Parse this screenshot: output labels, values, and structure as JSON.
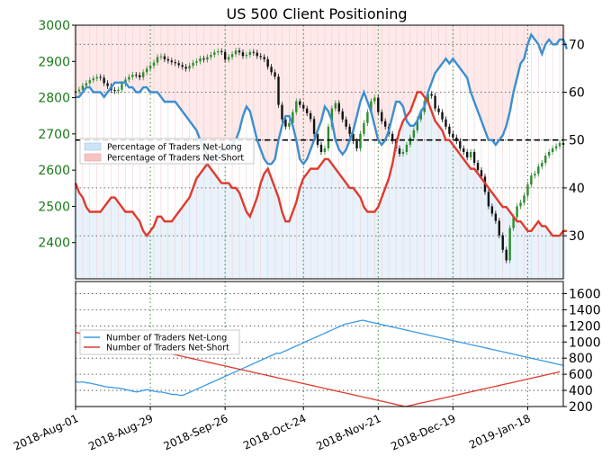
{
  "chart_data": [
    {
      "type": "candlestick+line",
      "title": "US 500 Client Positioning",
      "x_tick_labels": [
        "2018-Aug-01",
        "2018-Aug-29",
        "2018-Sep-26",
        "2018-Oct-24",
        "2018-Nov-21",
        "2018-Dec-19",
        "2019-Jan-18"
      ],
      "left_axis": {
        "ticks": [
          "2400",
          "2500",
          "2600",
          "2700",
          "2800",
          "2900",
          "3000"
        ],
        "range": [
          2300,
          3000
        ],
        "color": "#1a7a1a"
      },
      "right_axis": {
        "ticks": [
          "30",
          "40",
          "50",
          "60",
          "70"
        ],
        "range": [
          21,
          74
        ]
      },
      "reference_line": 50,
      "legend": [
        {
          "label": "Percentage of Traders Net-Long",
          "color": "#cde4f7"
        },
        {
          "label": "Percentage of Traders Net-Short",
          "color": "#f7c4c4"
        }
      ],
      "net_long_color": "#3a8fd0",
      "net_short_color": "#e03a2e",
      "price_close": [
        2818,
        2822,
        2833,
        2840,
        2848,
        2853,
        2857,
        2855,
        2840,
        2832,
        2821,
        2818,
        2822,
        2838,
        2850,
        2857,
        2863,
        2862,
        2856,
        2870,
        2880,
        2888,
        2897,
        2912,
        2914,
        2906,
        2902,
        2898,
        2895,
        2890,
        2885,
        2880,
        2888,
        2896,
        2900,
        2908,
        2905,
        2912,
        2918,
        2925,
        2928,
        2926,
        2905,
        2912,
        2920,
        2930,
        2925,
        2915,
        2918,
        2926,
        2924,
        2915,
        2912,
        2906,
        2885,
        2870,
        2858,
        2780,
        2740,
        2720,
        2730,
        2760,
        2790,
        2780,
        2770,
        2757,
        2741,
        2700,
        2670,
        2650,
        2660,
        2720,
        2770,
        2785,
        2762,
        2740,
        2720,
        2700,
        2680,
        2660,
        2700,
        2730,
        2760,
        2790,
        2800,
        2760,
        2735,
        2720,
        2700,
        2680,
        2660,
        2645,
        2650,
        2670,
        2690,
        2710,
        2740,
        2760,
        2790,
        2810,
        2805,
        2770,
        2760,
        2740,
        2720,
        2700,
        2690,
        2680,
        2660,
        2650,
        2635,
        2650,
        2620,
        2600,
        2582,
        2540,
        2500,
        2480,
        2460,
        2420,
        2380,
        2351,
        2440,
        2470,
        2500,
        2510,
        2530,
        2560,
        2585,
        2590,
        2610,
        2620,
        2640,
        2650,
        2660,
        2666,
        2675,
        2670
      ],
      "pct_long": [
        59,
        59,
        60,
        61,
        61,
        60,
        60,
        60,
        59,
        60,
        61,
        62,
        62,
        62,
        62,
        61,
        61,
        60,
        60,
        61,
        61,
        60,
        60,
        60,
        59,
        58,
        58,
        58,
        58,
        57,
        56,
        55,
        54,
        53,
        52,
        50,
        48,
        47,
        46,
        46,
        47,
        48,
        48,
        49,
        49,
        50,
        52,
        55,
        57,
        56,
        53,
        50,
        48,
        46,
        45,
        45,
        46,
        50,
        53,
        55,
        55,
        53,
        50,
        46,
        45,
        46,
        48,
        50,
        52,
        54,
        57,
        56,
        54,
        50,
        48,
        47,
        48,
        50,
        52,
        55,
        58,
        60,
        58,
        56,
        53,
        50,
        49,
        50,
        52,
        55,
        58,
        58,
        57,
        54,
        53,
        53,
        54,
        56,
        57,
        60,
        62,
        64,
        65,
        66,
        67,
        66,
        67,
        66,
        65,
        64,
        63,
        60,
        58,
        56,
        54,
        52,
        50,
        50,
        49,
        50,
        51,
        53,
        56,
        60,
        63,
        66,
        67,
        70,
        72,
        71,
        70,
        68,
        70,
        71,
        70,
        70,
        71,
        71,
        69
      ],
      "pct_short": [
        41,
        39,
        38,
        36,
        35,
        35,
        35,
        35,
        36,
        37,
        38,
        38,
        37,
        36,
        35,
        35,
        35,
        34,
        33,
        31,
        30,
        31,
        32,
        34,
        34,
        33,
        33,
        33,
        34,
        35,
        36,
        37,
        38,
        40,
        42,
        43,
        44,
        45,
        44,
        43,
        42,
        41,
        41,
        41,
        40,
        40,
        39,
        37,
        35,
        34,
        36,
        38,
        41,
        43,
        44,
        42,
        40,
        38,
        35,
        33,
        33,
        35,
        37,
        40,
        42,
        43,
        44,
        44,
        44,
        45,
        46,
        46,
        45,
        44,
        43,
        42,
        41,
        40,
        40,
        39,
        38,
        36,
        35,
        35,
        35,
        36,
        38,
        40,
        42,
        45,
        49,
        52,
        54,
        55,
        56,
        58,
        60,
        60,
        59,
        58,
        56,
        54,
        53,
        52,
        50,
        50,
        49,
        48,
        47,
        46,
        45,
        44,
        44,
        43,
        42,
        41,
        40,
        39,
        38,
        37,
        36,
        36,
        35,
        34,
        33,
        33,
        32,
        31,
        31,
        32,
        33,
        32,
        32,
        31,
        30,
        30,
        30,
        31,
        31
      ]
    },
    {
      "type": "line",
      "y_axis": {
        "ticks": [
          "200",
          "400",
          "600",
          "800",
          "1000",
          "1200",
          "1400",
          "1600"
        ],
        "range": [
          200,
          1750
        ]
      },
      "legend": [
        {
          "label": "Number of Traders Net-Long",
          "color": "#3a9ae6"
        },
        {
          "label": "Number of Traders Net-Short",
          "color": "#e03a2e"
        }
      ],
      "net_long": [
        510,
        500,
        505,
        495,
        490,
        480,
        470,
        460,
        450,
        440,
        440,
        430,
        430,
        420,
        410,
        400,
        390,
        380,
        390,
        400,
        410,
        400,
        390,
        380,
        380,
        370,
        360,
        350,
        350,
        340,
        340,
        360,
        380,
        400,
        420,
        440,
        460,
        480,
        500,
        520,
        540,
        560,
        580,
        600,
        620,
        640,
        660,
        680,
        700,
        720,
        740,
        760,
        780,
        800,
        820,
        840,
        860,
        860,
        880,
        900,
        920,
        940,
        960,
        980,
        1000,
        1020,
        1040,
        1060,
        1080,
        1100,
        1120,
        1140,
        1160,
        1180,
        1200,
        1220,
        1230,
        1240,
        1250,
        1260,
        1270,
        1260,
        1250,
        1240,
        1230,
        1220,
        1210,
        1200,
        1190,
        1180,
        1170,
        1160,
        1150,
        1140,
        1130,
        1120,
        1110,
        1100,
        1090,
        1080,
        1070,
        1060,
        1050,
        1040,
        1030,
        1020,
        1010,
        1000,
        990,
        980,
        970,
        960,
        950,
        940,
        930,
        920,
        910,
        900,
        890,
        880,
        870,
        860,
        850,
        840,
        830,
        820,
        810,
        800,
        790,
        780,
        770,
        760,
        750,
        740,
        730,
        720,
        710
      ],
      "net_short": [
        1120,
        1110,
        1100,
        1090,
        1080,
        1070,
        1060,
        1050,
        1040,
        1030,
        1020,
        1010,
        1000,
        990,
        980,
        970,
        960,
        950,
        940,
        930,
        920,
        910,
        900,
        890,
        880,
        870,
        860,
        850,
        840,
        830,
        820,
        810,
        800,
        790,
        780,
        770,
        760,
        750,
        740,
        730,
        720,
        710,
        700,
        690,
        680,
        670,
        660,
        650,
        640,
        630,
        620,
        610,
        600,
        590,
        580,
        570,
        560,
        550,
        540,
        530,
        520,
        510,
        500,
        490,
        480,
        470,
        460,
        450,
        440,
        430,
        420,
        410,
        400,
        390,
        380,
        370,
        360,
        350,
        340,
        330,
        320,
        310,
        300,
        290,
        280,
        270,
        260,
        250,
        240,
        230,
        220,
        210,
        200,
        210,
        220,
        230,
        240,
        250,
        260,
        270,
        280,
        290,
        300,
        310,
        320,
        330,
        340,
        350,
        360,
        370,
        380,
        390,
        400,
        410,
        420,
        430,
        440,
        450,
        460,
        470,
        480,
        490,
        500,
        510,
        520,
        530,
        540,
        550,
        560,
        570,
        580,
        590,
        600,
        610,
        620,
        630
      ]
    }
  ]
}
